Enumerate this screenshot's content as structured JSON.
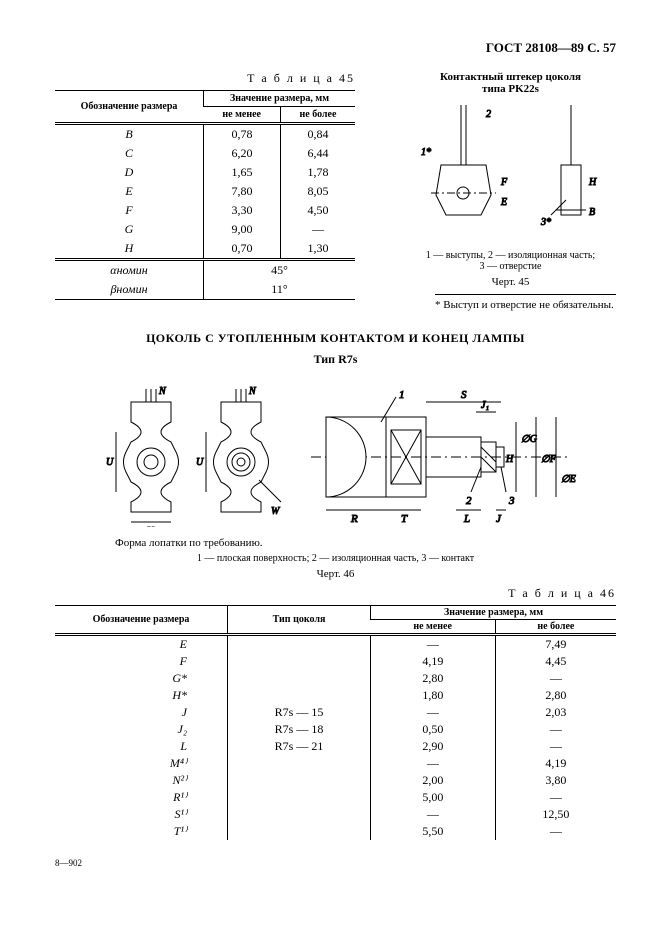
{
  "header": {
    "code": "ГОСТ 28108—89 С. 57"
  },
  "plug": {
    "title_line1": "Контактный штекер цоколя",
    "title_line2": "типа PK22s",
    "legend": "1 — выступы, 2 — изоляционная часть;\n3 — отверстие",
    "figure": "Черт. 45",
    "footnote": "* Выступ и отверстие не обязательны."
  },
  "table45": {
    "title": "Т а б л и ц а  45",
    "head_label": "Обозначение размера",
    "head_group": "Значение размера, мм",
    "head_min": "не менее",
    "head_max": "не более",
    "rows": [
      {
        "k": "B",
        "min": "0,78",
        "max": "0,84"
      },
      {
        "k": "C",
        "min": "6,20",
        "max": "6,44"
      },
      {
        "k": "D",
        "min": "1,65",
        "max": "1,78"
      },
      {
        "k": "E",
        "min": "7,80",
        "max": "8,05"
      },
      {
        "k": "F",
        "min": "3,30",
        "max": "4,50"
      },
      {
        "k": "G",
        "min": "9,00",
        "max": "—"
      },
      {
        "k": "H",
        "min": "0,70",
        "max": "1,30"
      }
    ],
    "angles": [
      {
        "k": "αномин",
        "val": "45°"
      },
      {
        "k": "βномин",
        "val": "11°"
      }
    ]
  },
  "section2": {
    "heading": "ЦОКОЛЬ С УТОПЛЕННЫМ КОНТАКТОМ И КОНЕЦ ЛАМПЫ",
    "type": "Тип R7s",
    "note": "Форма лопатки по требованию.",
    "legend": "1 — плоская поверхность; 2 — изоляционная часть, 3 — контакт",
    "figure": "Черт. 46"
  },
  "table46": {
    "title": "Т а б л и ц а  46",
    "head_label": "Обозначение размера",
    "head_type": "Тип цоколя",
    "head_group": "Значение размера, мм",
    "head_min": "не менее",
    "head_max": "не более",
    "rows": [
      {
        "k": "E",
        "t": "",
        "min": "—",
        "max": "7,49"
      },
      {
        "k": "F",
        "t": "",
        "min": "4,19",
        "max": "4,45"
      },
      {
        "k": "G*",
        "t": "",
        "min": "2,80",
        "max": "—"
      },
      {
        "k": "H*",
        "t": "",
        "min": "1,80",
        "max": "2,80"
      },
      {
        "k": "J",
        "t": "R7s — 15",
        "min": "—",
        "max": "2,03"
      },
      {
        "k": "J₂",
        "t": "R7s — 18",
        "min": "0,50",
        "max": "—"
      },
      {
        "k": "L",
        "t": "R7s — 21",
        "min": "2,90",
        "max": "—"
      },
      {
        "k": "M⁴⁾",
        "t": "",
        "min": "—",
        "max": "4,19"
      },
      {
        "k": "N²⁾",
        "t": "",
        "min": "2,00",
        "max": "3,80"
      },
      {
        "k": "R¹⁾",
        "t": "",
        "min": "5,00",
        "max": "—"
      },
      {
        "k": "S¹⁾",
        "t": "",
        "min": "—",
        "max": "12,50"
      },
      {
        "k": "T¹⁾",
        "t": "",
        "min": "5,50",
        "max": "—"
      }
    ]
  },
  "footer": {
    "mark": "8—902"
  },
  "diagram_labels": [
    "N",
    "U",
    "V",
    "W",
    "∅G",
    "∅F",
    "∅E",
    "R",
    "T",
    "L",
    "J",
    "S",
    "J₁",
    "1",
    "2",
    "3",
    "1*"
  ]
}
